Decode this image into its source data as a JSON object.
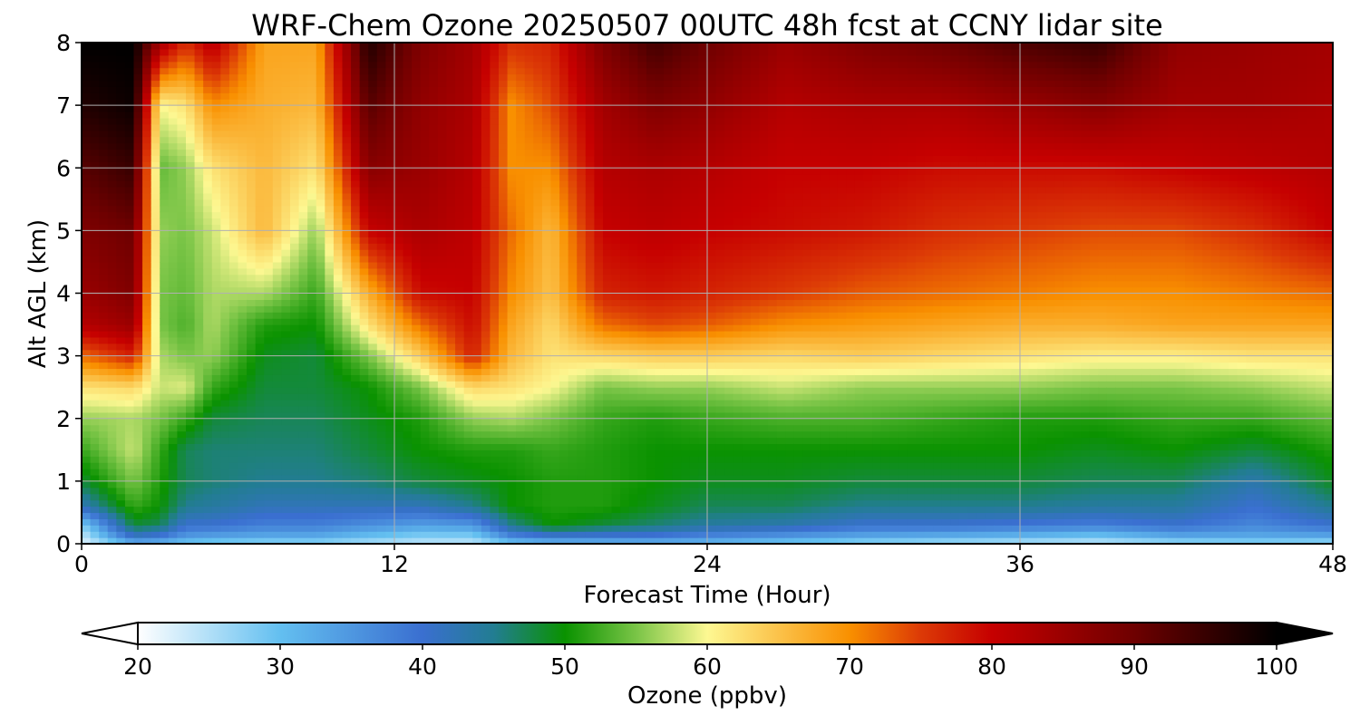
{
  "chart_data": {
    "type": "heatmap",
    "title": "WRF-Chem Ozone  20250507 00UTC 48h fcst at CCNY lidar site",
    "xlabel": "Forecast Time (Hour)",
    "ylabel": "Alt AGL (km)",
    "xlim": [
      0,
      48
    ],
    "ylim": [
      0,
      8
    ],
    "xticks": [
      0,
      12,
      24,
      36,
      48
    ],
    "yticks": [
      0,
      1,
      2,
      3,
      4,
      5,
      6,
      7,
      8
    ],
    "grid": true,
    "colorbar": {
      "label": "Ozone  (ppbv)",
      "min": 20,
      "max": 100,
      "ticks": [
        20,
        30,
        40,
        50,
        60,
        70,
        80,
        90,
        100
      ],
      "extend": "both",
      "orientation": "horizontal",
      "color_stops": [
        {
          "v": 20,
          "c": "#ffffff"
        },
        {
          "v": 30,
          "c": "#63bff0"
        },
        {
          "v": 40,
          "c": "#3a6fd0"
        },
        {
          "v": 45,
          "c": "#227d92"
        },
        {
          "v": 50,
          "c": "#0a9200"
        },
        {
          "v": 55,
          "c": "#79c446"
        },
        {
          "v": 60,
          "c": "#fdf892"
        },
        {
          "v": 65,
          "c": "#fbc24a"
        },
        {
          "v": 70,
          "c": "#f99000"
        },
        {
          "v": 75,
          "c": "#dc3a06"
        },
        {
          "v": 80,
          "c": "#c60000"
        },
        {
          "v": 90,
          "c": "#6e0000"
        },
        {
          "v": 100,
          "c": "#000000"
        }
      ]
    },
    "x_hours": [
      0,
      2,
      3,
      4,
      5,
      7,
      9,
      11,
      13,
      15,
      16.5,
      18,
      20,
      22,
      24,
      27,
      30,
      33,
      36,
      39,
      42,
      45,
      48
    ],
    "y_km": [
      0,
      0.1,
      0.3,
      0.6,
      1.0,
      1.5,
      2.0,
      2.5,
      3.0,
      3.5,
      4.0,
      5.0,
      6.0,
      7.0,
      8.0
    ],
    "ozone_ppbv": [
      [
        22,
        23,
        28,
        42,
        48,
        52,
        56,
        62,
        72,
        82,
        85,
        88,
        92,
        97,
        100
      ],
      [
        30,
        40,
        48,
        52,
        55,
        58,
        57,
        63,
        77,
        85,
        88,
        90,
        95,
        99,
        100
      ],
      [
        30,
        38,
        47,
        50,
        51,
        52,
        55,
        58,
        57,
        55,
        55,
        56,
        54,
        60,
        84
      ],
      [
        28,
        34,
        40,
        45,
        47,
        47,
        52,
        59,
        55,
        53,
        54,
        55,
        56,
        62,
        76
      ],
      [
        27,
        33,
        40,
        44,
        46,
        46,
        48,
        52,
        56,
        57,
        57,
        58,
        62,
        70,
        82
      ],
      [
        26,
        32,
        38,
        42,
        45,
        46,
        47,
        48,
        49,
        51,
        57,
        66,
        66,
        67,
        68
      ],
      [
        26,
        32,
        38,
        42,
        45,
        46,
        47,
        48,
        48,
        50,
        52,
        56,
        62,
        66,
        68
      ],
      [
        25,
        29,
        36,
        42,
        46,
        48,
        49,
        50,
        55,
        62,
        67,
        80,
        87,
        92,
        97
      ],
      [
        24,
        27,
        34,
        42,
        48,
        50,
        51,
        55,
        64,
        72,
        79,
        83,
        85,
        86,
        88
      ],
      [
        24,
        27,
        35,
        45,
        49,
        51,
        56,
        63,
        77,
        79,
        80,
        81,
        82,
        83,
        84
      ],
      [
        28,
        36,
        45,
        50,
        50,
        51,
        57,
        62,
        66,
        68,
        70,
        72,
        70,
        70,
        76
      ],
      [
        30,
        38,
        50,
        51,
        51,
        52,
        55,
        60,
        62,
        63,
        65,
        66,
        70,
        74,
        77
      ],
      [
        30,
        38,
        48,
        51,
        51,
        51,
        52,
        55,
        63,
        72,
        77,
        80,
        82,
        84,
        88
      ],
      [
        30,
        38,
        46,
        49,
        50,
        50,
        51,
        56,
        64,
        74,
        78,
        81,
        83,
        88,
        94
      ],
      [
        30,
        36,
        44,
        47,
        49,
        50,
        52,
        56,
        64,
        73,
        77,
        80,
        82,
        86,
        90
      ],
      [
        28,
        34,
        43,
        47,
        49,
        50,
        53,
        58,
        63,
        70,
        75,
        79,
        80,
        82,
        85
      ],
      [
        26,
        32,
        40,
        45,
        48,
        50,
        53,
        56,
        64,
        69,
        73,
        78,
        80,
        83,
        88
      ],
      [
        25,
        31,
        40,
        45,
        48,
        50,
        52,
        56,
        63,
        68,
        72,
        76,
        79,
        83,
        90
      ],
      [
        24,
        30,
        39,
        45,
        48,
        50,
        51,
        56,
        62,
        67,
        71,
        75,
        79,
        85,
        93
      ],
      [
        24,
        28,
        38,
        44,
        47,
        49,
        51,
        55,
        61,
        67,
        70,
        74,
        79,
        87,
        95
      ],
      [
        25,
        32,
        40,
        44,
        47,
        50,
        52,
        55,
        61,
        68,
        70,
        74,
        80,
        84,
        86
      ],
      [
        26,
        32,
        37,
        40,
        43,
        48,
        52,
        56,
        62,
        68,
        71,
        76,
        81,
        84,
        85
      ],
      [
        25,
        32,
        40,
        45,
        49,
        51,
        54,
        58,
        62,
        68,
        72,
        80,
        82,
        83,
        84
      ]
    ]
  }
}
